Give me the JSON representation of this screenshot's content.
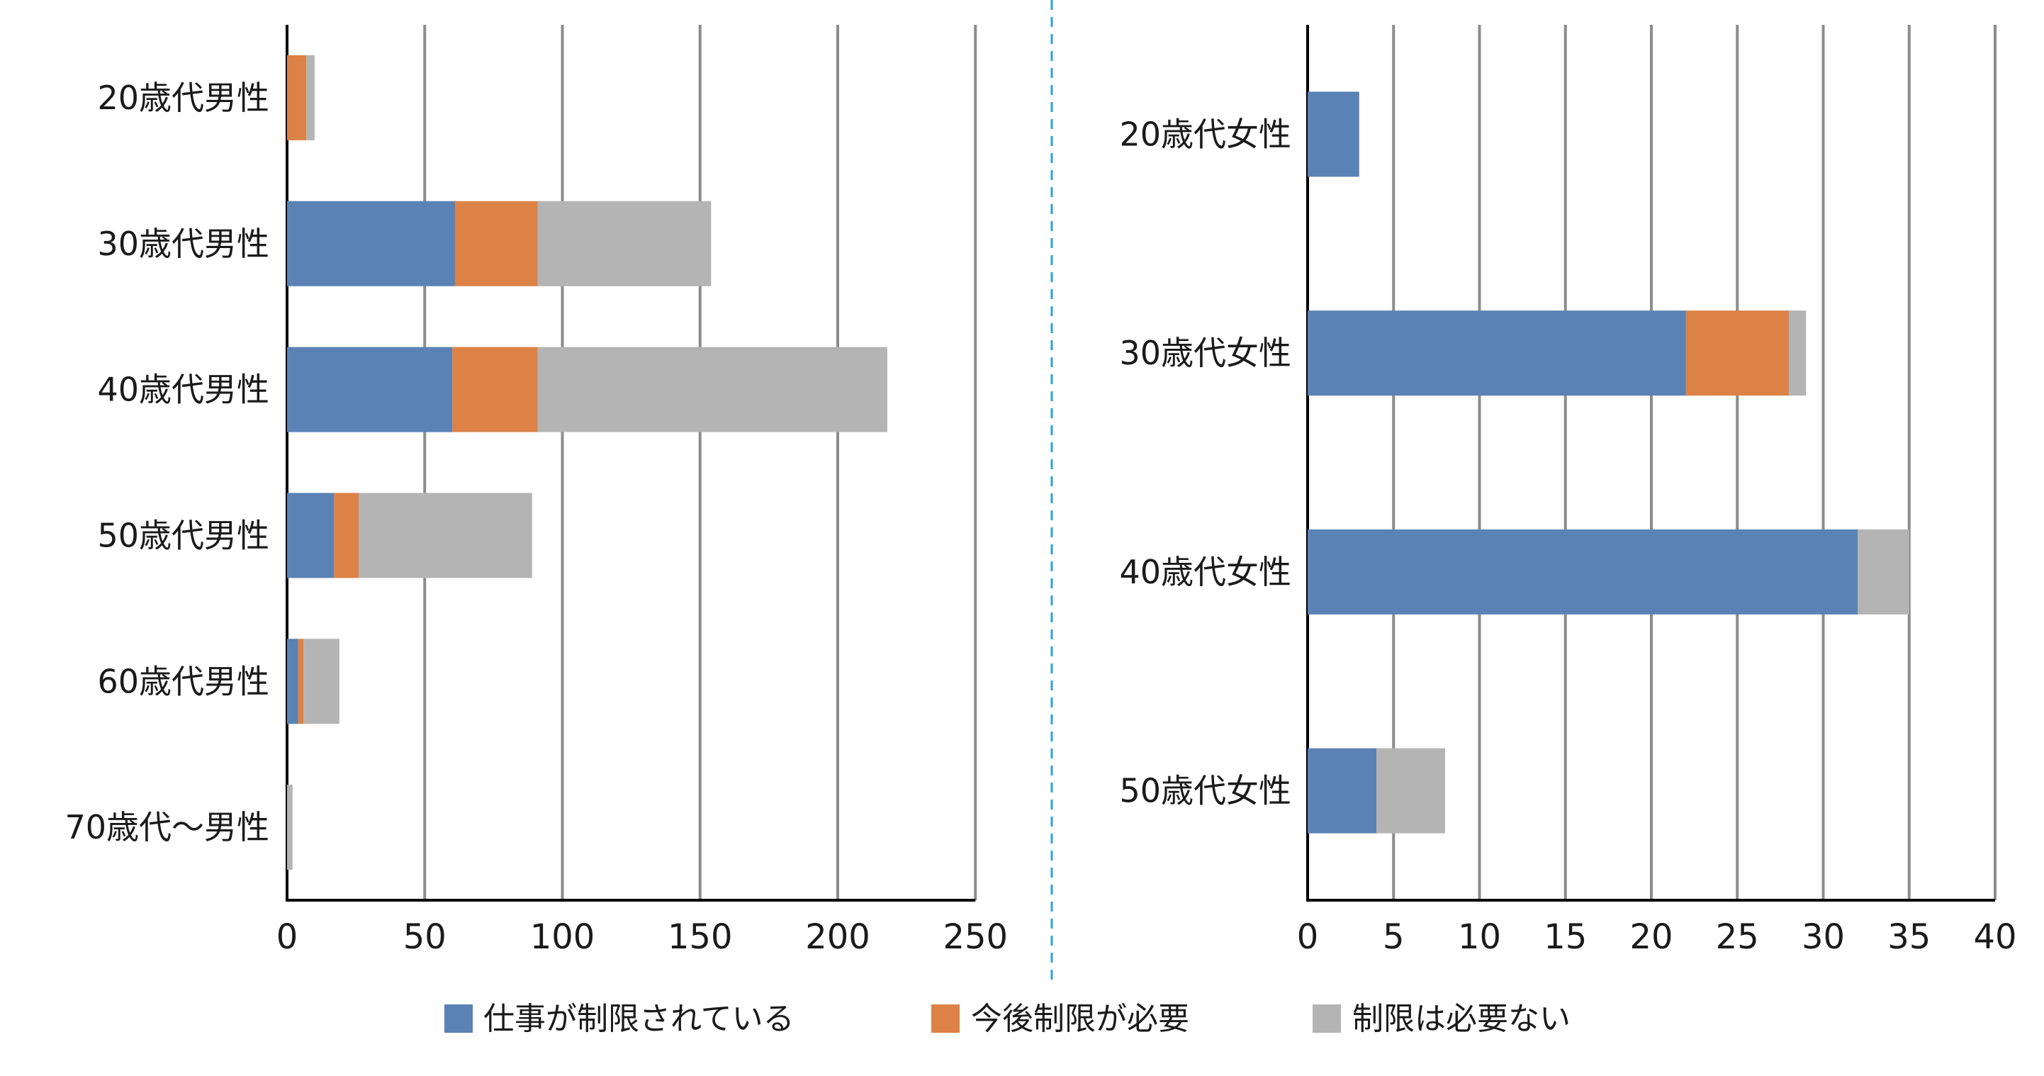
{
  "colors": {
    "restricted": "#5a82b4",
    "needs_restriction": "#dc8246",
    "no_restriction": "#b4b4b4"
  },
  "legend": {
    "items": [
      {
        "label": "仕事が制限されている",
        "color_key": "restricted"
      },
      {
        "label": "今後制限が必要",
        "color_key": "needs_restriction"
      },
      {
        "label": "制限は必要ない",
        "color_key": "no_restriction"
      }
    ]
  },
  "chart_data": [
    {
      "type": "bar",
      "orientation": "horizontal",
      "stacked": true,
      "categories": [
        "20歳代男性",
        "30歳代男性",
        "40歳代男性",
        "50歳代男性",
        "60歳代男性",
        "70歳代〜男性"
      ],
      "series": [
        {
          "name": "仕事が制限されている",
          "values": [
            0,
            61,
            60,
            17,
            4,
            0
          ]
        },
        {
          "name": "今後制限が必要",
          "values": [
            7,
            30,
            31,
            9,
            2,
            0
          ]
        },
        {
          "name": "制限は必要ない",
          "values": [
            3,
            63,
            127,
            63,
            13,
            2
          ]
        }
      ],
      "xlim": [
        0,
        250
      ],
      "xticks": [
        0,
        50,
        100,
        150,
        200,
        250
      ],
      "xlabel": "",
      "ylabel": "",
      "grid": true
    },
    {
      "type": "bar",
      "orientation": "horizontal",
      "stacked": true,
      "categories": [
        "20歳代女性",
        "30歳代女性",
        "40歳代女性",
        "50歳代女性"
      ],
      "series": [
        {
          "name": "仕事が制限されている",
          "values": [
            3,
            22,
            32,
            4
          ]
        },
        {
          "name": "今後制限が必要",
          "values": [
            0,
            6,
            0,
            0
          ]
        },
        {
          "name": "制限は必要ない",
          "values": [
            0,
            1,
            3,
            4
          ]
        }
      ],
      "xlim": [
        0,
        40
      ],
      "xticks": [
        0,
        5,
        10,
        15,
        20,
        25,
        30,
        35,
        40
      ],
      "xlabel": "",
      "ylabel": "",
      "grid": true
    }
  ]
}
